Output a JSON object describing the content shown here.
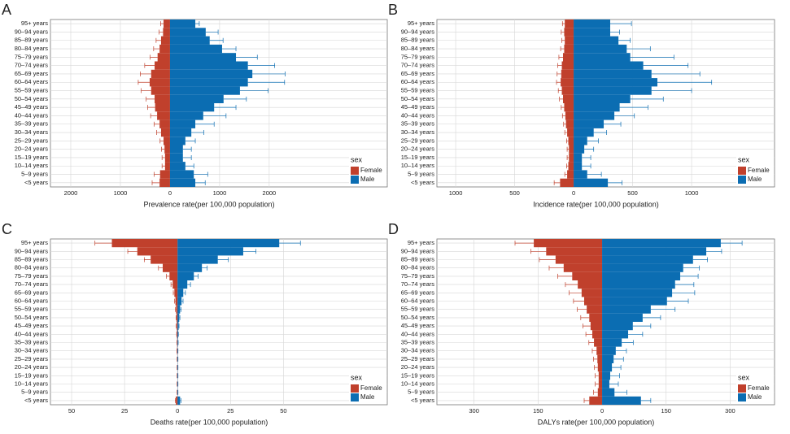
{
  "chart_data": [
    {
      "type": "pyramid",
      "label": "A",
      "xlabel": "Prevalence rate(per 100,000 population)",
      "categories": [
        "95+ years",
        "90–94 years",
        "85–89 years",
        "80–84 years",
        "75–79 years",
        "70–74 years",
        "65–69 years",
        "60–64 years",
        "55–59 years",
        "50–54 years",
        "45–49 years",
        "40–44 years",
        "35–39 years",
        "30–34 years",
        "25–29 years",
        "20–24 years",
        "15–19 years",
        "10–14 years",
        "5–9 years",
        "<5 years"
      ],
      "series": [
        {
          "name": "Female",
          "color": "#c0402c",
          "values": [
            -130,
            -140,
            -180,
            -210,
            -250,
            -310,
            -380,
            -410,
            -380,
            -310,
            -300,
            -260,
            -210,
            -180,
            -130,
            -110,
            -100,
            -100,
            -200,
            -210
          ],
          "errors": [
            60,
            80,
            100,
            120,
            150,
            200,
            220,
            230,
            200,
            170,
            150,
            130,
            110,
            90,
            70,
            60,
            60,
            60,
            120,
            150
          ]
        },
        {
          "name": "Male",
          "color": "#0b6db2",
          "values": [
            510,
            720,
            800,
            1050,
            1330,
            1570,
            1660,
            1570,
            1410,
            1080,
            890,
            670,
            510,
            430,
            310,
            260,
            260,
            310,
            480,
            510
          ],
          "errors": [
            80,
            250,
            270,
            280,
            430,
            540,
            660,
            740,
            570,
            460,
            440,
            460,
            380,
            250,
            200,
            170,
            170,
            170,
            280,
            200
          ]
        }
      ],
      "xlim": [
        -2410,
        4380
      ],
      "xticks": [
        {
          "value": -2000,
          "label": "2000"
        },
        {
          "value": -1000,
          "label": "1000"
        },
        0,
        1000,
        2000
      ],
      "legend_title": "sex",
      "legend": "bottom-right",
      "grid": true
    },
    {
      "type": "pyramid",
      "label": "B",
      "xlabel": "Incidence rate(per 100,000 population)",
      "categories": [
        "95+ years",
        "90–94 years",
        "85–89 years",
        "80–84 years",
        "75–79 years",
        "70–74 years",
        "65–69 years",
        "60–64 years",
        "55–59 years",
        "50–54 years",
        "45–49 years",
        "40–44 years",
        "35–39 years",
        "30–34 years",
        "25–29 years",
        "20–24 years",
        "15–19 years",
        "10–14 years",
        "5–9 years",
        "<5 years"
      ],
      "series": [
        {
          "name": "Female",
          "color": "#c0402c",
          "values": [
            -75,
            -80,
            -75,
            -80,
            -90,
            -100,
            -105,
            -110,
            -100,
            -90,
            -80,
            -70,
            -65,
            -55,
            -45,
            -40,
            -40,
            -45,
            -55,
            -115
          ],
          "errors": [
            20,
            25,
            25,
            30,
            35,
            35,
            35,
            35,
            30,
            30,
            25,
            25,
            20,
            20,
            15,
            15,
            15,
            15,
            20,
            50
          ]
        },
        {
          "name": "Male",
          "color": "#0b6db2",
          "values": [
            310,
            310,
            380,
            450,
            480,
            590,
            660,
            710,
            660,
            480,
            390,
            345,
            255,
            170,
            115,
            90,
            70,
            70,
            115,
            290
          ],
          "errors": [
            180,
            80,
            100,
            200,
            370,
            380,
            410,
            460,
            340,
            280,
            240,
            170,
            145,
            110,
            95,
            80,
            75,
            75,
            120,
            120
          ]
        }
      ],
      "xlim": [
        -1159,
        1703
      ],
      "xticks": [
        {
          "value": -1000,
          "label": "1000"
        },
        {
          "value": -500,
          "label": "500"
        },
        0,
        500,
        1000
      ],
      "legend_title": "sex",
      "legend": "bottom-right",
      "grid": true
    },
    {
      "type": "pyramid",
      "label": "C",
      "xlabel": "Deaths rate(per 100,000 population)",
      "categories": [
        "95+ years",
        "90–94 years",
        "85–89 years",
        "80–84 years",
        "75–79 years",
        "70–74 years",
        "65–69 years",
        "60–64 years",
        "55–59 years",
        "50–54 years",
        "45–49 years",
        "40–44 years",
        "35–39 years",
        "30–34 years",
        "25–29 years",
        "20–24 years",
        "15–19 years",
        "10–14 years",
        "5–9 years",
        "<5 years"
      ],
      "series": [
        {
          "name": "Female",
          "color": "#c0402c",
          "values": [
            -31,
            -19,
            -12.7,
            -7,
            -3.8,
            -2.3,
            -1.5,
            -1,
            -0.7,
            -0.5,
            -0.4,
            -0.3,
            -0.2,
            -0.2,
            -0.1,
            -0.1,
            -0.1,
            -0.1,
            -0.1,
            -0.8
          ],
          "errors": [
            8,
            4.5,
            3,
            2,
            1.5,
            0.8,
            0.5,
            0.4,
            0.3,
            0.2,
            0.2,
            0.1,
            0.1,
            0.1,
            0.1,
            0.1,
            0.1,
            0.1,
            0.1,
            0.3
          ]
        },
        {
          "name": "Male",
          "color": "#0b6db2",
          "values": [
            48,
            31,
            19,
            11.5,
            7.7,
            4.6,
            2.7,
            1.9,
            1.2,
            0.8,
            0.5,
            0.3,
            0.2,
            0.1,
            0.1,
            0.1,
            0.1,
            0.1,
            0.1,
            1.2
          ],
          "errors": [
            10,
            6,
            5,
            2.5,
            2,
            1.5,
            1,
            0.7,
            0.5,
            0.3,
            0.2,
            0.1,
            0.1,
            0.1,
            0.1,
            0.1,
            0.1,
            0.1,
            0.1,
            0.4
          ]
        }
      ],
      "xlim": [
        -60,
        99
      ],
      "xticks": [
        {
          "value": -50,
          "label": "50"
        },
        {
          "value": -25,
          "label": "25"
        },
        0,
        25,
        50
      ],
      "legend_title": "sex",
      "legend": "bottom-right",
      "grid": true
    },
    {
      "type": "pyramid",
      "label": "D",
      "xlabel": "DALYs rate(per 100,000 population)",
      "categories": [
        "95+ years",
        "90–94 years",
        "85–89 years",
        "80–84 years",
        "75–79 years",
        "70–74 years",
        "65–69 years",
        "60–64 years",
        "55–59 years",
        "50–54 years",
        "45–49 years",
        "40–44 years",
        "35–39 years",
        "30–34 years",
        "25–29 years",
        "20–24 years",
        "15–19 years",
        "10–14 years",
        "5–9 years",
        "<5 years"
      ],
      "series": [
        {
          "name": "Female",
          "color": "#c0402c",
          "values": [
            -160,
            -131,
            -109,
            -90,
            -70,
            -57,
            -48,
            -42,
            -36,
            -30,
            -27,
            -23,
            -19,
            -13,
            -11,
            -10,
            -8,
            -8,
            -10,
            -30
          ],
          "errors": [
            44,
            36,
            38,
            34,
            34,
            29,
            29,
            25,
            22,
            20,
            18,
            15,
            12,
            10,
            9,
            8,
            8,
            8,
            10,
            12
          ]
        },
        {
          "name": "Male",
          "color": "#0b6db2",
          "values": [
            278,
            244,
            213,
            190,
            183,
            171,
            164,
            152,
            114,
            95,
            72,
            61,
            46,
            32,
            27,
            23,
            19,
            17,
            29,
            91
          ],
          "errors": [
            50,
            36,
            34,
            38,
            42,
            44,
            53,
            50,
            57,
            42,
            42,
            34,
            27,
            25,
            23,
            21,
            22,
            21,
            29,
            23
          ]
        }
      ],
      "xlim": [
        -387,
        404
      ],
      "xticks": [
        {
          "value": -300,
          "label": "300"
        },
        {
          "value": -150,
          "label": "150"
        },
        0,
        150,
        300
      ],
      "legend_title": "sex",
      "legend": "bottom-right",
      "grid": true
    }
  ]
}
